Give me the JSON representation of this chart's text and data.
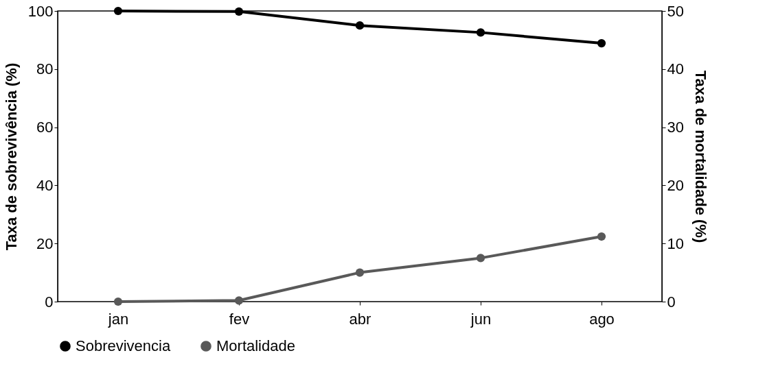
{
  "chart_data": {
    "type": "line",
    "categories": [
      "jan",
      "fev",
      "abr",
      "jun",
      "ago"
    ],
    "ylabel": "Taxa de sobrevivência (%)",
    "y2label": "Taxa de mortalidade (%)",
    "ylim": [
      0,
      100
    ],
    "yticks": [
      0,
      20,
      40,
      60,
      80,
      100
    ],
    "y2lim": [
      0,
      50
    ],
    "y2ticks": [
      0,
      10,
      20,
      30,
      40,
      50
    ],
    "series": [
      {
        "name": "Sobrevivencia",
        "color": "#000000",
        "values": [
          100,
          99.8,
          95,
          92.6,
          88.9
        ]
      },
      {
        "name": "Mortalidade",
        "color": "#595959",
        "axis": "y2",
        "values": [
          0,
          0.2,
          5,
          7.5,
          11.2
        ]
      }
    ],
    "legend": "bottom",
    "grid": false,
    "marker": "circle",
    "line_style": "solid"
  }
}
